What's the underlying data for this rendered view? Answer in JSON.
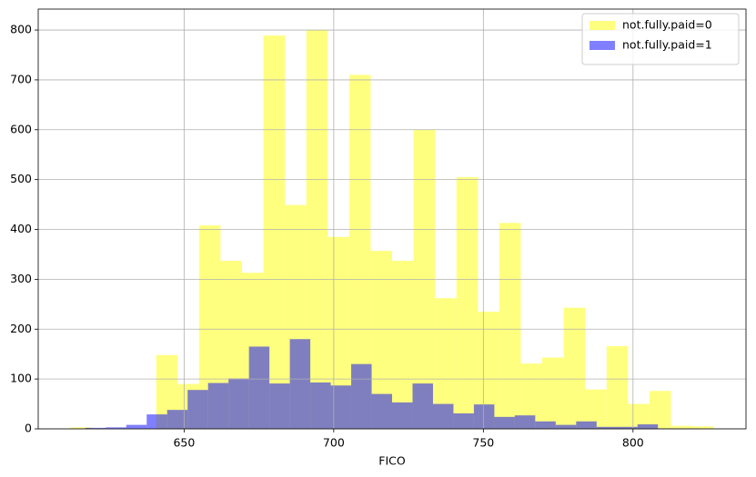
{
  "chart_data": {
    "type": "histogram",
    "x_label": "FICO",
    "xlim": [
      601.25,
      837.75
    ],
    "ylim": [
      0,
      842
    ],
    "xticks": [
      650,
      700,
      750,
      800
    ],
    "yticks": [
      0,
      100,
      200,
      300,
      400,
      500,
      600,
      700,
      800
    ],
    "grid": true,
    "legend": "upper right",
    "series": [
      {
        "name": "not.fully.paid=0",
        "color": "#ffff00",
        "bins": [
          612,
          619.17,
          626.33,
          633.5,
          640.67,
          647.83,
          655,
          662.17,
          669.33,
          676.5,
          683.67,
          690.83,
          698,
          705.17,
          712.33,
          719.5,
          726.67,
          733.83,
          741,
          748.17,
          755.33,
          762.5,
          769.67,
          776.83,
          784,
          791.17,
          798.33,
          805.5,
          812.67,
          819.83,
          827
        ],
        "values": [
          3,
          0,
          0,
          0,
          148,
          90,
          408,
          337,
          313,
          789,
          449,
          800,
          385,
          710,
          357,
          337,
          600,
          262,
          505,
          235,
          413,
          131,
          143,
          243,
          79,
          166,
          50,
          76,
          6,
          5
        ]
      },
      {
        "name": "not.fully.paid=1",
        "color": "#0000ff",
        "bins": [
          617,
          623.83,
          630.67,
          637.5,
          644.33,
          651.17,
          658,
          664.83,
          671.67,
          678.5,
          685.33,
          692.17,
          699,
          705.83,
          712.67,
          719.5,
          726.33,
          733.17,
          740,
          746.83,
          753.67,
          760.5,
          767.33,
          774.17,
          781,
          787.83,
          794.67,
          801.5,
          808.33,
          815.17,
          822
        ],
        "values": [
          2,
          3,
          8,
          29,
          38,
          78,
          92,
          101,
          165,
          91,
          180,
          93,
          87,
          130,
          70,
          53,
          91,
          50,
          31,
          49,
          24,
          27,
          15,
          8,
          15,
          4,
          4,
          9,
          1,
          1
        ]
      }
    ]
  }
}
